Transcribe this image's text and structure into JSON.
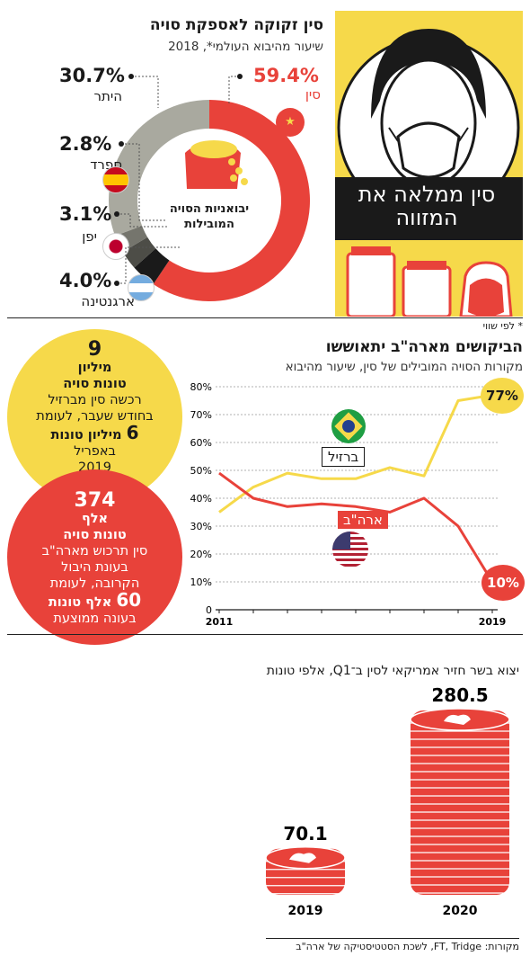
{
  "section1": {
    "title": "סין זקוקה לאספקת סויה",
    "subtitle": "שיעור מהיבוא העולמי*, 2018",
    "donut_center_label": "יבואניות הסויה המובילות",
    "illustration_text": "סין ממלאה את המזווה",
    "footnote": "* לפי שווי",
    "colors": {
      "china": "#e8423a",
      "other": "#a9a99f",
      "spain": "#4d4d47",
      "japan": "#6e6e66",
      "argentina": "#1a1a1a",
      "panel": "#f6d94a"
    }
  },
  "section2": {
    "title": "הביקושים מארה\"ב יתאוששו",
    "subtitle": "מקורות הסויה המובילים של סין, שיעור מהיבוא",
    "bubble_yellow": {
      "num1": "9",
      "line1": "מיליון",
      "line2": "טונות סויה",
      "line3": "רכשה סין מברזיל",
      "line4": "בחודש שעבר, לעומת",
      "num2": "6",
      "line5": "מיליון טונות",
      "line6": "באפריל",
      "line7": "2019"
    },
    "bubble_red": {
      "num1": "374",
      "line1": "אלף",
      "line2": "טונות סויה",
      "line3": "סין תרכוש מארה\"ב",
      "line4": "בעונת היבול",
      "line5": "הקרובה, לעומת",
      "num2": "60",
      "line6": "אלף טונות",
      "line7": "בעונה ממוצעת"
    }
  },
  "section3": {
    "title": "יצוא בשר חזיר אמריקאי לסין ב־Q1, אלפי טונות",
    "sources": "מקורות: FT, Tridge, לשכת הסטטיסטיקה של ארה\"ב"
  },
  "chart_data": [
    {
      "type": "pie",
      "title": "סין זקוקה לאספקת סויה",
      "subtitle": "שיעור מהיבוא העולמי*, 2018",
      "slices": [
        {
          "label": "סין",
          "value": 59.4,
          "display": "59.4%",
          "color": "#e8423a"
        },
        {
          "label": "ארגנטינה",
          "value": 4.0,
          "display": "4.0%",
          "color": "#1a1a1a"
        },
        {
          "label": "יפן",
          "value": 3.1,
          "display": "3.1%",
          "color": "#4d4d47"
        },
        {
          "label": "ספרד",
          "value": 2.8,
          "display": "2.8%",
          "color": "#75756d"
        },
        {
          "label": "היתר",
          "value": 30.7,
          "display": "30.7%",
          "color": "#a9a99f"
        }
      ]
    },
    {
      "type": "line",
      "title": "הביקושים מארה\"ב יתאוששו",
      "subtitle": "מקורות הסויה המובילים של סין, שיעור מהיבוא",
      "x": [
        2011,
        2012,
        2013,
        2014,
        2015,
        2016,
        2017,
        2018,
        2019
      ],
      "x_tick_labels": [
        "2011",
        "2019"
      ],
      "ylim": [
        0,
        80
      ],
      "y_ticks": [
        0,
        10,
        20,
        30,
        40,
        50,
        60,
        70,
        80
      ],
      "y_tick_labels": [
        "0",
        "10%",
        "20%",
        "30%",
        "40%",
        "50%",
        "60%",
        "70%",
        "80%"
      ],
      "grid": true,
      "series": [
        {
          "name": "ברזיל",
          "color": "#f6d94a",
          "values": [
            35,
            44,
            49,
            47,
            47,
            51,
            48,
            75,
            77
          ],
          "end_label": "77%"
        },
        {
          "name": "ארה\"ב",
          "color": "#e8423a",
          "values": [
            49,
            40,
            37,
            38,
            37,
            35,
            40,
            30,
            10
          ],
          "end_label": "10%"
        }
      ]
    },
    {
      "type": "bar",
      "title": "יצוא בשר חזיר אמריקאי לסין ב־Q1, אלפי טונות",
      "categories": [
        "2019",
        "2020"
      ],
      "values": [
        70.1,
        280.5
      ],
      "value_labels": [
        "70.1",
        "280.5"
      ],
      "color": "#e8423a"
    }
  ]
}
